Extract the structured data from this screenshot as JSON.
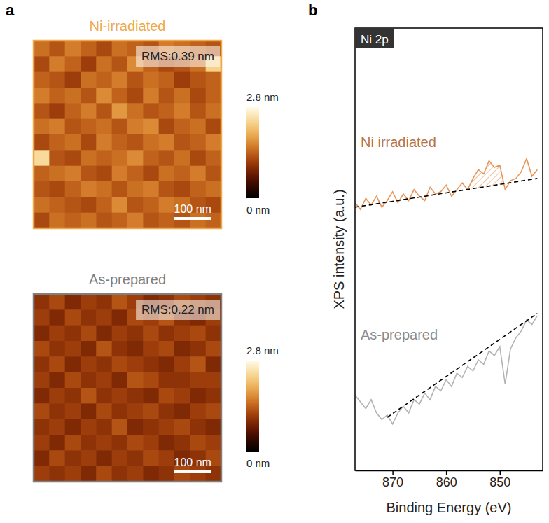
{
  "chart_data": [
    {
      "type": "heatmap",
      "panel": "a",
      "title": "Ni-irradiated",
      "annotation": "RMS:0.39 nm",
      "color": "#eea94a",
      "size": 500,
      "scale_bar": {
        "value": 100,
        "label": "100 nm"
      },
      "tick_labels": false,
      "colorbar": {
        "range": [
          0,
          2.8
        ],
        "ticks": [
          {
            "value": 2.8,
            "label": "2.8 nm"
          },
          {
            "value": 0,
            "label": "0 nm"
          }
        ]
      },
      "cells": [
        [
          1.5,
          1.3,
          1.6,
          1.4,
          1.2,
          1.5,
          1.4,
          1.3,
          1.6,
          1.5,
          1.4,
          1.3
        ],
        [
          1.2,
          1.6,
          1.4,
          1.1,
          1.5,
          1.3,
          1.7,
          1.4,
          1.2,
          1.3,
          1.5,
          2.3
        ],
        [
          1.4,
          1.3,
          1.1,
          1.5,
          1.4,
          1.6,
          1.3,
          1.5,
          1.4,
          1.1,
          1.3,
          1.4
        ],
        [
          1.6,
          1.4,
          1.5,
          1.3,
          1.7,
          1.4,
          1.2,
          1.6,
          1.3,
          1.5,
          1.2,
          1.4
        ],
        [
          1.3,
          1.1,
          1.4,
          1.6,
          1.3,
          1.8,
          1.5,
          1.3,
          1.4,
          1.6,
          1.3,
          1.5
        ],
        [
          1.5,
          1.6,
          1.3,
          1.4,
          1.5,
          1.3,
          1.6,
          1.7,
          1.2,
          1.4,
          1.5,
          1.2
        ],
        [
          1.2,
          1.4,
          1.5,
          1.2,
          1.6,
          1.4,
          1.3,
          1.5,
          1.6,
          1.3,
          1.4,
          1.6
        ],
        [
          2.4,
          1.3,
          1.2,
          1.5,
          1.4,
          1.5,
          1.7,
          1.4,
          1.3,
          1.5,
          1.2,
          1.4
        ],
        [
          1.4,
          1.5,
          1.6,
          1.3,
          1.2,
          1.6,
          1.4,
          1.2,
          1.5,
          1.4,
          1.6,
          1.3
        ],
        [
          1.3,
          1.2,
          1.4,
          1.6,
          1.5,
          1.3,
          1.5,
          1.6,
          1.3,
          1.2,
          1.4,
          1.5
        ],
        [
          1.5,
          1.4,
          1.3,
          1.2,
          1.4,
          1.7,
          1.3,
          1.4,
          1.6,
          1.5,
          1.3,
          1.2
        ],
        [
          1.2,
          1.5,
          1.4,
          1.5,
          1.3,
          1.4,
          1.6,
          1.3,
          1.4,
          1.3,
          1.5,
          1.4
        ]
      ]
    },
    {
      "type": "heatmap",
      "title": "As-prepared",
      "annotation": "RMS:0.22 nm",
      "color": "#7f7f7f",
      "size": 500,
      "scale_bar": {
        "value": 100,
        "label": "100 nm"
      },
      "tick_labels": false,
      "colorbar": {
        "range": [
          0,
          2.8
        ],
        "ticks": [
          {
            "value": 2.8,
            "label": "2.8 nm"
          },
          {
            "value": 0,
            "label": "0 nm"
          }
        ]
      },
      "cells": [
        [
          1.0,
          1.2,
          0.9,
          1.1,
          1.0,
          1.3,
          1.1,
          0.9,
          1.0,
          1.2,
          1.1,
          1.0
        ],
        [
          1.1,
          0.9,
          1.2,
          1.0,
          1.1,
          0.9,
          1.2,
          1.1,
          1.3,
          1.0,
          0.9,
          1.1
        ],
        [
          0.9,
          1.1,
          1.0,
          1.2,
          0.9,
          1.1,
          1.0,
          1.2,
          1.0,
          1.1,
          1.2,
          1.0
        ],
        [
          1.2,
          1.0,
          1.1,
          0.9,
          1.3,
          1.0,
          0.9,
          1.1,
          1.2,
          0.9,
          1.0,
          1.2
        ],
        [
          1.0,
          1.2,
          0.9,
          1.1,
          1.0,
          1.2,
          1.1,
          1.0,
          0.9,
          1.1,
          1.3,
          0.9
        ],
        [
          1.1,
          0.9,
          1.2,
          1.0,
          1.1,
          0.9,
          1.3,
          1.2,
          1.0,
          1.0,
          1.1,
          1.1
        ],
        [
          0.9,
          1.1,
          1.0,
          1.3,
          1.0,
          1.1,
          1.0,
          0.9,
          1.2,
          1.1,
          0.9,
          1.0
        ],
        [
          1.2,
          1.0,
          1.1,
          0.9,
          1.2,
          1.0,
          1.1,
          1.2,
          1.0,
          0.9,
          1.1,
          1.2
        ],
        [
          1.0,
          1.1,
          0.9,
          1.1,
          1.0,
          1.3,
          0.9,
          1.0,
          1.1,
          1.2,
          1.0,
          0.9
        ],
        [
          1.1,
          0.9,
          1.2,
          1.0,
          1.1,
          1.0,
          1.2,
          1.1,
          0.9,
          1.0,
          1.2,
          1.1
        ],
        [
          0.9,
          1.2,
          1.0,
          1.1,
          0.9,
          1.1,
          1.0,
          1.2,
          1.1,
          0.9,
          1.0,
          1.2
        ],
        [
          1.1,
          1.0,
          1.1,
          0.9,
          1.2,
          1.0,
          1.1,
          0.9,
          1.0,
          1.2,
          1.1,
          1.0
        ]
      ]
    },
    {
      "type": "line",
      "panel": "b",
      "title": "Ni 2p",
      "xlabel": "Binding Energy (eV)",
      "ylabel": "XPS intensity (a.u.)",
      "xlim": [
        877,
        842
      ],
      "ylim": [
        0,
        100
      ],
      "xticks": [
        870,
        860,
        850
      ],
      "tick_labels": "x",
      "series": [
        {
          "name": "Ni irradiated",
          "color": "#e8955a",
          "x": [
            877,
            876,
            875,
            874,
            873,
            872,
            871,
            870,
            869,
            868,
            867,
            866,
            865,
            864,
            863,
            862,
            861,
            860,
            859,
            858,
            857,
            856,
            855,
            854,
            853,
            852,
            851,
            850,
            849,
            848,
            847,
            846,
            845,
            844,
            843
          ],
          "values": [
            60.5,
            59,
            61.5,
            60,
            62,
            59.5,
            61,
            63,
            60.5,
            62.5,
            61,
            63.5,
            62,
            61,
            64,
            62.5,
            63,
            64.5,
            62,
            63.5,
            65,
            63.5,
            66,
            68,
            67,
            70,
            68.5,
            69,
            63.5,
            65.5,
            66,
            67.5,
            70.5,
            66.5,
            68
          ],
          "shaded_x": [
            856,
            849
          ]
        },
        {
          "color": "#000000",
          "line_style": "dashed",
          "x": [
            877,
            843
          ],
          "values": [
            59.5,
            66
          ]
        },
        {
          "name": "As-prepared",
          "color": "#b3b3b3",
          "x": [
            877,
            876,
            875,
            874,
            873,
            872,
            871,
            870,
            869,
            868,
            867,
            866,
            865,
            864,
            863,
            862,
            861,
            860,
            859,
            858,
            857,
            856,
            855,
            854,
            853,
            852,
            851,
            850,
            849,
            848,
            847,
            846,
            845,
            844,
            843
          ],
          "values": [
            17,
            15.5,
            14,
            16,
            13,
            11.5,
            12.5,
            10.5,
            13,
            14.5,
            13,
            16,
            15,
            17.5,
            16,
            19,
            18,
            20.5,
            19,
            22,
            21,
            23.5,
            22.5,
            25,
            24,
            27,
            26,
            28,
            19.5,
            27.5,
            30,
            31.5,
            34,
            33,
            35
          ]
        },
        {
          "color": "#000000",
          "line_style": "dashed",
          "x": [
            871,
            843
          ],
          "values": [
            12,
            35.5
          ]
        }
      ]
    }
  ]
}
